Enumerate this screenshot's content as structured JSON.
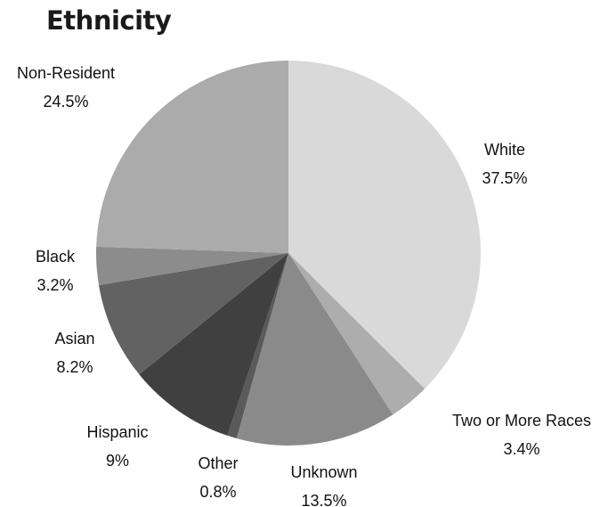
{
  "chart_data": {
    "type": "pie",
    "title": "Ethnicity",
    "slices": [
      {
        "label": "White",
        "value": 37.5,
        "display": "37.5%",
        "color": "#d9d9d9"
      },
      {
        "label": "Two or More Races",
        "value": 3.4,
        "display": "3.4%",
        "color": "#adadad"
      },
      {
        "label": "Unknown",
        "value": 13.5,
        "display": "13.5%",
        "color": "#8a8a8a"
      },
      {
        "label": "Other",
        "value": 0.8,
        "display": "0.8%",
        "color": "#5a5a5a"
      },
      {
        "label": "Hispanic",
        "value": 9,
        "display": "9%",
        "color": "#404040"
      },
      {
        "label": "Asian",
        "value": 8.2,
        "display": "8.2%",
        "color": "#626262"
      },
      {
        "label": "Black",
        "value": 3.2,
        "display": "3.2%",
        "color": "#8c8c8c"
      },
      {
        "label": "Non-Resident",
        "value": 24.5,
        "display": "24.5%",
        "color": "#ababab"
      }
    ]
  }
}
